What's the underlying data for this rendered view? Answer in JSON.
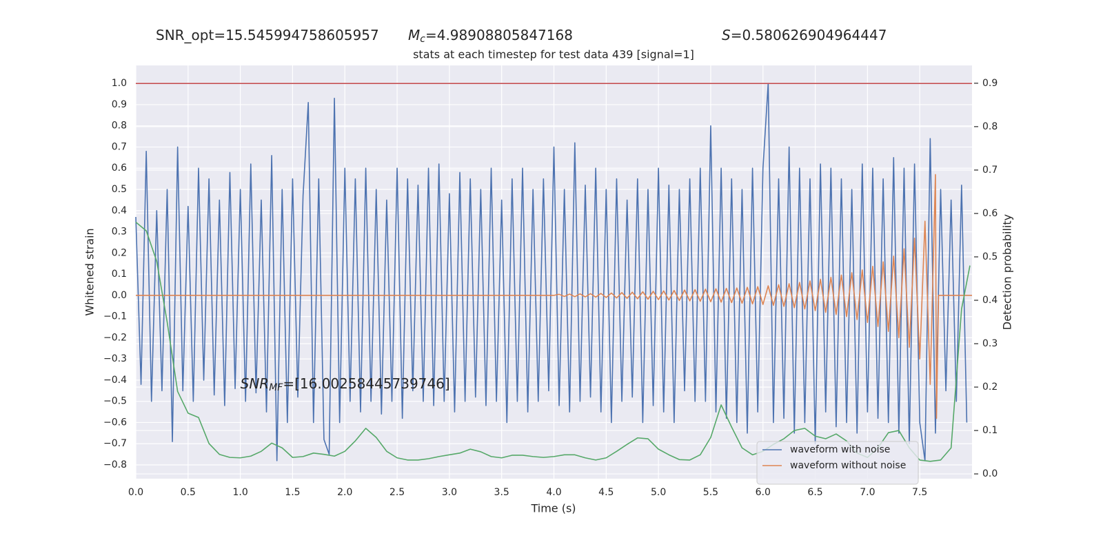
{
  "chart_data": {
    "type": "line",
    "title": "stats at each timestep for test data 439 [signal=1]",
    "header_texts": [
      {
        "text": "SNR_opt=15.545994758605957"
      },
      {
        "symbol": "M",
        "subscript": "c",
        "text": "=4.98908805847168"
      },
      {
        "symbol": "S",
        "text": "=0.580626904964447"
      }
    ],
    "annotation": {
      "symbol": "SNR",
      "subscript": "MF",
      "text": "=[16.00258445739746]",
      "x": 1.0,
      "y": -0.42
    },
    "xlabel": "Time (s)",
    "ylabel": "Whitened strain",
    "y2label": "Detection probability",
    "xlim": [
      0,
      8.0
    ],
    "ylim": [
      -0.865,
      1.085
    ],
    "y2lim": [
      -0.011,
      0.941
    ],
    "xticks": [
      {
        "value": 0,
        "label": "0.0"
      },
      0.5,
      {
        "value": 1,
        "label": "1.0"
      },
      1.5,
      {
        "value": 2,
        "label": "2.0"
      },
      2.5,
      {
        "value": 3,
        "label": "3.0"
      },
      3.5,
      {
        "value": 4,
        "label": "4.0"
      },
      4.5,
      {
        "value": 5,
        "label": "5.0"
      },
      5.5,
      {
        "value": 6,
        "label": "6.0"
      },
      6.5,
      {
        "value": 7,
        "label": "7.0"
      },
      7.5
    ],
    "yticks": [
      {
        "value": -0.8,
        "label": "−0.8"
      },
      {
        "value": -0.7,
        "label": "−0.7"
      },
      {
        "value": -0.6,
        "label": "−0.6"
      },
      {
        "value": -0.5,
        "label": "−0.5"
      },
      {
        "value": -0.4,
        "label": "−0.4"
      },
      {
        "value": -0.3,
        "label": "−0.3"
      },
      {
        "value": -0.2,
        "label": "−0.2"
      },
      {
        "value": -0.1,
        "label": "−0.1"
      },
      {
        "value": 0,
        "label": "0.0"
      },
      0.1,
      0.2,
      0.3,
      0.4,
      0.5,
      0.6,
      0.7,
      0.8,
      0.9,
      {
        "value": 1,
        "label": "1.0"
      }
    ],
    "y2ticks": [
      {
        "value": 0,
        "label": "0.0"
      },
      0.1,
      0.2,
      0.3,
      0.4,
      0.5,
      0.6,
      0.7,
      0.8,
      0.9
    ],
    "grid": true,
    "hline": {
      "value": 1.0,
      "color": "#c44e52"
    },
    "legend": "lower right",
    "series": [
      {
        "name": "waveform with noise",
        "color": "#4c72b0",
        "x": [
          0,
          0.05,
          0.1,
          0.15,
          0.2,
          0.25,
          0.3,
          0.35,
          0.4,
          0.45,
          0.5,
          0.55,
          0.6,
          0.65,
          0.7,
          0.75,
          0.8,
          0.85,
          0.9,
          0.95,
          1,
          1.05,
          1.1,
          1.15,
          1.2,
          1.25,
          1.3,
          1.35,
          1.4,
          1.45,
          1.5,
          1.55,
          1.6,
          1.65,
          1.7,
          1.75,
          1.8,
          1.85,
          1.9,
          1.95,
          2,
          2.05,
          2.1,
          2.15,
          2.2,
          2.25,
          2.3,
          2.35,
          2.4,
          2.45,
          2.5,
          2.55,
          2.6,
          2.65,
          2.7,
          2.75,
          2.8,
          2.85,
          2.9,
          2.95,
          3,
          3.05,
          3.1,
          3.15,
          3.2,
          3.25,
          3.3,
          3.35,
          3.4,
          3.45,
          3.5,
          3.55,
          3.6,
          3.65,
          3.7,
          3.75,
          3.8,
          3.85,
          3.9,
          3.95,
          4,
          4.05,
          4.1,
          4.15,
          4.2,
          4.25,
          4.3,
          4.35,
          4.4,
          4.45,
          4.5,
          4.55,
          4.6,
          4.65,
          4.7,
          4.75,
          4.8,
          4.85,
          4.9,
          4.95,
          5,
          5.05,
          5.1,
          5.15,
          5.2,
          5.25,
          5.3,
          5.35,
          5.4,
          5.45,
          5.5,
          5.55,
          5.6,
          5.65,
          5.7,
          5.75,
          5.8,
          5.85,
          5.9,
          5.95,
          6,
          6.05,
          6.1,
          6.15,
          6.2,
          6.25,
          6.3,
          6.35,
          6.4,
          6.45,
          6.5,
          6.55,
          6.6,
          6.65,
          6.7,
          6.75,
          6.8,
          6.85,
          6.9,
          6.95,
          7,
          7.05,
          7.1,
          7.15,
          7.2,
          7.25,
          7.3,
          7.35,
          7.4,
          7.45,
          7.5,
          7.55,
          7.6,
          7.65,
          7.7,
          7.75,
          7.8,
          7.85,
          7.9,
          7.95
        ],
        "values": [
          0.37,
          -0.42,
          0.68,
          -0.5,
          0.4,
          -0.45,
          0.5,
          -0.69,
          0.7,
          -0.45,
          0.42,
          -0.5,
          0.6,
          -0.4,
          0.55,
          -0.47,
          0.45,
          -0.52,
          0.58,
          -0.44,
          0.5,
          -0.5,
          0.62,
          -0.46,
          0.45,
          -0.55,
          0.66,
          -0.78,
          0.5,
          -0.6,
          0.55,
          -0.48,
          0.47,
          0.91,
          -0.6,
          0.55,
          -0.68,
          -0.75,
          0.93,
          -0.6,
          0.6,
          -0.5,
          0.55,
          -0.55,
          0.6,
          -0.5,
          0.5,
          -0.56,
          0.45,
          -0.5,
          0.6,
          -0.58,
          0.55,
          -0.45,
          0.52,
          -0.5,
          0.6,
          -0.52,
          0.62,
          -0.5,
          0.48,
          -0.55,
          0.58,
          -0.5,
          0.55,
          -0.48,
          0.5,
          -0.52,
          0.6,
          -0.5,
          0.45,
          -0.6,
          0.55,
          -0.5,
          0.6,
          -0.55,
          0.5,
          -0.5,
          0.55,
          -0.45,
          0.7,
          -0.52,
          0.5,
          -0.55,
          0.72,
          -0.5,
          0.52,
          -0.48,
          0.6,
          -0.55,
          0.5,
          -0.6,
          0.55,
          -0.5,
          0.45,
          -0.48,
          0.55,
          -0.6,
          0.5,
          -0.52,
          0.6,
          -0.55,
          0.52,
          -0.6,
          0.5,
          -0.45,
          0.55,
          -0.5,
          0.6,
          -0.5,
          0.8,
          -0.55,
          0.6,
          -0.58,
          0.55,
          -0.6,
          0.5,
          -0.65,
          0.6,
          -0.55,
          0.6,
          1.0,
          -0.6,
          0.55,
          -0.58,
          0.7,
          -0.65,
          0.6,
          -0.6,
          0.55,
          -0.7,
          0.62,
          -0.55,
          0.6,
          -0.62,
          0.55,
          -0.6,
          0.5,
          -0.65,
          0.62,
          -0.55,
          0.6,
          -0.58,
          0.55,
          -0.6,
          0.65,
          -0.65,
          0.6,
          -0.7,
          0.62,
          -0.6,
          -0.78,
          0.74,
          -0.65,
          0.5,
          -0.45,
          0.45,
          -0.5,
          0.52,
          -0.6
        ]
      },
      {
        "name": "waveform without noise",
        "color": "#dd8452",
        "x": [
          0,
          4,
          4.05,
          4.1,
          4.15,
          4.2,
          4.25,
          4.3,
          4.35,
          4.4,
          4.45,
          4.5,
          4.55,
          4.6,
          4.65,
          4.7,
          4.75,
          4.8,
          4.85,
          4.9,
          4.95,
          5,
          5.05,
          5.1,
          5.15,
          5.2,
          5.25,
          5.3,
          5.35,
          5.4,
          5.45,
          5.5,
          5.55,
          5.6,
          5.65,
          5.7,
          5.75,
          5.8,
          5.85,
          5.9,
          5.95,
          6,
          6.05,
          6.1,
          6.15,
          6.2,
          6.25,
          6.3,
          6.35,
          6.4,
          6.45,
          6.5,
          6.55,
          6.6,
          6.65,
          6.7,
          6.75,
          6.8,
          6.85,
          6.9,
          6.95,
          7,
          7.05,
          7.1,
          7.15,
          7.2,
          7.25,
          7.3,
          7.35,
          7.4,
          7.45,
          7.5,
          7.55,
          7.6,
          7.65,
          7.66,
          7.68,
          8
        ],
        "values": [
          0,
          0,
          0.005,
          -0.005,
          0.006,
          -0.006,
          0.007,
          -0.007,
          0.008,
          -0.008,
          0.009,
          -0.01,
          0.011,
          -0.012,
          0.013,
          -0.014,
          0.015,
          -0.016,
          0.017,
          -0.018,
          0.019,
          -0.02,
          0.021,
          -0.022,
          0.023,
          -0.024,
          0.025,
          -0.026,
          0.027,
          -0.028,
          0.029,
          -0.03,
          0.031,
          -0.032,
          0.033,
          -0.034,
          0.035,
          -0.037,
          0.038,
          -0.04,
          0.041,
          -0.043,
          0.045,
          -0.047,
          0.05,
          -0.052,
          0.055,
          -0.058,
          0.061,
          -0.064,
          0.068,
          -0.072,
          0.076,
          -0.08,
          0.085,
          -0.09,
          0.096,
          -0.1,
          0.107,
          -0.114,
          0.12,
          -0.128,
          0.137,
          -0.147,
          0.158,
          -0.17,
          0.185,
          -0.2,
          0.22,
          -0.245,
          0.27,
          -0.3,
          0.35,
          -0.42,
          0.57,
          -0.58,
          0,
          0
        ]
      },
      {
        "color": "#55a868",
        "axis": "y2",
        "x": [
          0,
          0.1,
          0.2,
          0.3,
          0.4,
          0.5,
          0.6,
          0.7,
          0.8,
          0.9,
          1,
          1.1,
          1.2,
          1.3,
          1.4,
          1.5,
          1.6,
          1.7,
          1.8,
          1.9,
          2,
          2.1,
          2.2,
          2.3,
          2.4,
          2.5,
          2.6,
          2.7,
          2.8,
          2.9,
          3,
          3.1,
          3.2,
          3.3,
          3.4,
          3.5,
          3.6,
          3.7,
          3.8,
          3.9,
          4,
          4.1,
          4.2,
          4.3,
          4.4,
          4.5,
          4.6,
          4.7,
          4.8,
          4.9,
          5,
          5.1,
          5.2,
          5.3,
          5.4,
          5.5,
          5.6,
          5.7,
          5.8,
          5.9,
          6,
          6.1,
          6.2,
          6.3,
          6.4,
          6.5,
          6.6,
          6.7,
          6.8,
          6.9,
          7,
          7.1,
          7.2,
          7.3,
          7.4,
          7.5,
          7.6,
          7.7,
          7.8,
          7.9,
          7.98
        ],
        "values": [
          0.58,
          0.56,
          0.49,
          0.35,
          0.19,
          0.14,
          0.13,
          0.07,
          0.045,
          0.038,
          0.037,
          0.041,
          0.052,
          0.071,
          0.06,
          0.038,
          0.04,
          0.048,
          0.045,
          0.041,
          0.052,
          0.076,
          0.105,
          0.084,
          0.052,
          0.037,
          0.032,
          0.032,
          0.035,
          0.04,
          0.044,
          0.048,
          0.057,
          0.051,
          0.04,
          0.037,
          0.043,
          0.043,
          0.04,
          0.038,
          0.04,
          0.044,
          0.044,
          0.037,
          0.032,
          0.037,
          0.052,
          0.068,
          0.083,
          0.081,
          0.057,
          0.044,
          0.033,
          0.032,
          0.044,
          0.084,
          0.159,
          0.108,
          0.06,
          0.044,
          0.052,
          0.068,
          0.081,
          0.1,
          0.105,
          0.087,
          0.081,
          0.092,
          0.076,
          0.048,
          0.038,
          0.06,
          0.095,
          0.1,
          0.06,
          0.032,
          0.029,
          0.032,
          0.06,
          0.38,
          0.48
        ]
      }
    ]
  }
}
